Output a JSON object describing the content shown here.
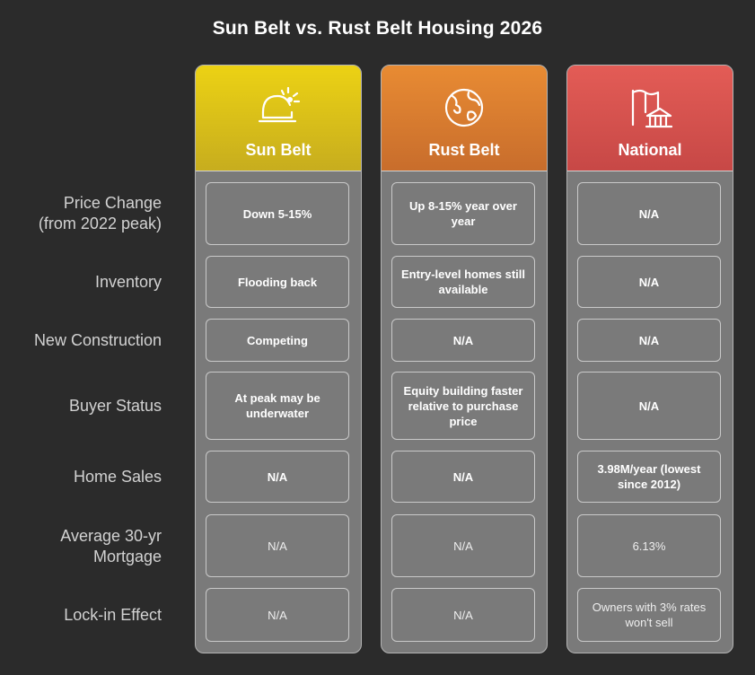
{
  "title": "Sun Belt vs. Rust Belt Housing 2026",
  "rows": [
    {
      "line1": "Price Change",
      "line2": "(from 2022 peak)"
    },
    {
      "line1": "Inventory"
    },
    {
      "line1": "New Construction"
    },
    {
      "line1": "Buyer Status"
    },
    {
      "line1": "Home Sales"
    },
    {
      "line1": "Average 30-yr",
      "line2": "Mortgage"
    },
    {
      "line1": "Lock-in Effect"
    }
  ],
  "columns": [
    {
      "name": "Sun Belt",
      "icon": "sun-hat-icon",
      "color_top": "#ecd214",
      "color_bottom": "#c7ad1e",
      "cells": [
        "Down 5-15%",
        "Flooding back",
        "Competing",
        "At peak may be underwater",
        "N/A",
        "N/A",
        "N/A"
      ]
    },
    {
      "name": "Rust Belt",
      "icon": "globe-icon",
      "color_top": "#e88b33",
      "color_bottom": "#c86d2c",
      "cells": [
        "Up 8-15% year over year",
        "Entry-level homes still available",
        "N/A",
        "Equity building faster relative to purchase price",
        "N/A",
        "N/A",
        "N/A"
      ]
    },
    {
      "name": "National",
      "icon": "flag-capitol-icon",
      "color_top": "#e35c56",
      "color_bottom": "#c74846",
      "cells": [
        "N/A",
        "N/A",
        "N/A",
        "N/A",
        "3.98M/year (lowest since 2012)",
        "6.13%",
        "Owners with 3% rates won't sell"
      ]
    }
  ]
}
